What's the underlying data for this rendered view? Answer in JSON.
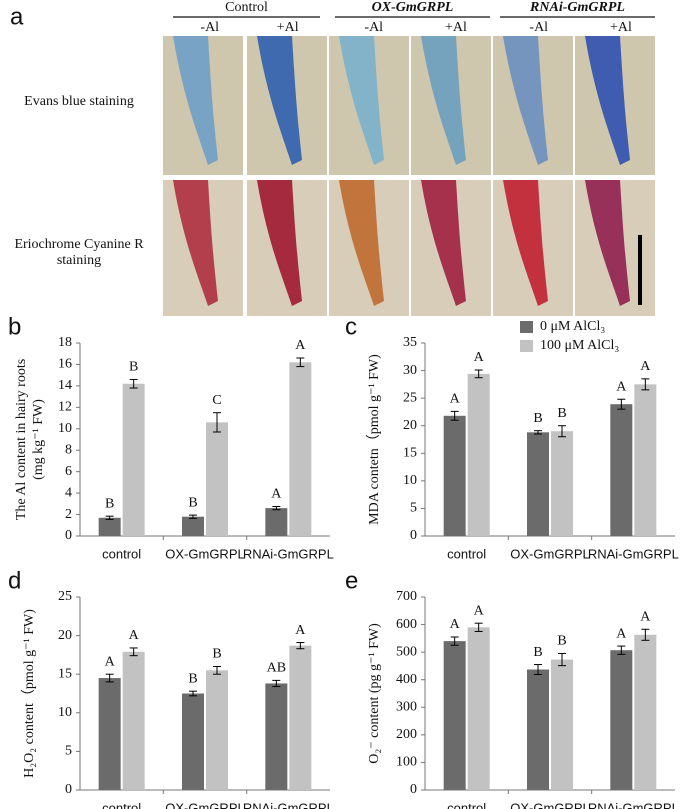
{
  "panel_a": {
    "label": "a",
    "groups": [
      {
        "name": "Control",
        "conditions": [
          "-Al",
          "+Al"
        ]
      },
      {
        "name": "OX-GmGRPL",
        "conditions": [
          "-Al",
          "+Al"
        ]
      },
      {
        "name": "RNAi-GmGRPL",
        "conditions": [
          "-Al",
          "+Al"
        ]
      }
    ],
    "rows": [
      "Evans blue staining",
      "Eriochrome Cyanine R staining"
    ]
  },
  "chart_data": [
    {
      "type": "bar",
      "panel": "b",
      "ylabel": [
        "The Al content in hairy roots",
        "(mg kg⁻¹ FW)"
      ],
      "categories": [
        "control",
        "OX-GmGRPL",
        "RNAi-GmGRPL"
      ],
      "series": [
        {
          "color": "#6b6b6b",
          "values": [
            1.7,
            1.8,
            2.6
          ],
          "errors": [
            0.15,
            0.15,
            0.15
          ],
          "labels": [
            "B",
            "B",
            "A"
          ]
        },
        {
          "color": "#c2c2c2",
          "values": [
            14.2,
            10.6,
            16.2
          ],
          "errors": [
            0.4,
            0.9,
            0.4
          ],
          "labels": [
            "B",
            "C",
            "A"
          ]
        }
      ],
      "ylim": [
        0,
        18
      ],
      "yticks": [
        0,
        2,
        4,
        6,
        8,
        10,
        12,
        14,
        16,
        18
      ]
    },
    {
      "type": "bar",
      "panel": "c",
      "ylabel": "MDA contetn（pmol g⁻¹ FW)",
      "categories": [
        "control",
        "OX-GmGRPL",
        "RNAi-GmGRPL"
      ],
      "series": [
        {
          "name": "0 μM  AlCl₃",
          "color": "#6b6b6b",
          "values": [
            21.8,
            18.8,
            23.9
          ],
          "errors": [
            0.8,
            0.3,
            0.9
          ],
          "labels": [
            "A",
            "B",
            "A"
          ]
        },
        {
          "name": "100 μM  AlCl₃",
          "color": "#c2c2c2",
          "values": [
            29.4,
            19.0,
            27.5
          ],
          "errors": [
            0.7,
            1.0,
            1.0
          ],
          "labels": [
            "A",
            "B",
            "A"
          ]
        }
      ],
      "ylim": [
        0,
        35
      ],
      "yticks": [
        0,
        5,
        10,
        15,
        20,
        25,
        30,
        35
      ]
    },
    {
      "type": "bar",
      "panel": "d",
      "ylabel": "H₂O₂ content（pmol g⁻¹ FW)",
      "categories": [
        "control",
        "OX-GmGRPL",
        "RNAi-GmGRPL"
      ],
      "series": [
        {
          "color": "#6b6b6b",
          "values": [
            14.5,
            12.5,
            13.8
          ],
          "errors": [
            0.5,
            0.3,
            0.4
          ],
          "labels": [
            "A",
            "B",
            "AB"
          ]
        },
        {
          "color": "#c2c2c2",
          "values": [
            17.9,
            15.5,
            18.7
          ],
          "errors": [
            0.5,
            0.5,
            0.4
          ],
          "labels": [
            "A",
            "B",
            "A"
          ]
        }
      ],
      "ylim": [
        0,
        25
      ],
      "yticks": [
        0,
        5,
        10,
        15,
        20,
        25
      ]
    },
    {
      "type": "bar",
      "panel": "e",
      "ylabel": "O₂⁻ content (pg g⁻¹ FW)",
      "categories": [
        "control",
        "OX-GmGRPL",
        "RNAi-GmGRPL"
      ],
      "series": [
        {
          "color": "#6b6b6b",
          "values": [
            540,
            437,
            507
          ],
          "errors": [
            15,
            18,
            15
          ],
          "labels": [
            "A",
            "B",
            "A"
          ]
        },
        {
          "color": "#c2c2c2",
          "values": [
            590,
            473,
            563
          ],
          "errors": [
            15,
            22,
            20
          ],
          "labels": [
            "A",
            "B",
            "A"
          ]
        }
      ],
      "ylim": [
        0,
        700
      ],
      "yticks": [
        0,
        100,
        200,
        300,
        400,
        500,
        600,
        700
      ]
    }
  ]
}
